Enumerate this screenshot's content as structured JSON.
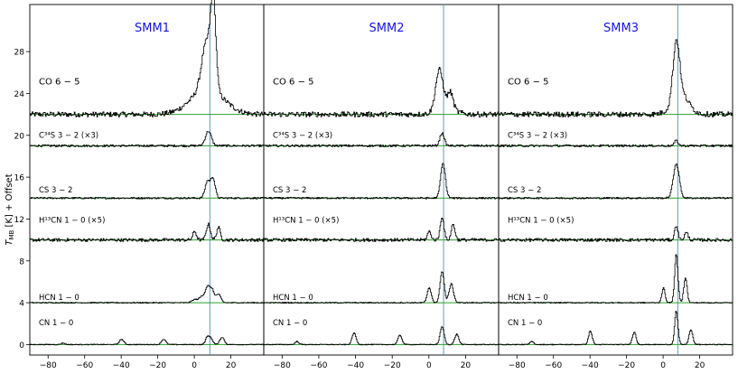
{
  "chart_data": {
    "type": "line",
    "ylabel": "T_MB [K] + Offset",
    "ylabel_main": "T",
    "ylabel_sub": "MB",
    "ylabel_rest": " [K] + Offset",
    "ylim": [
      -1.0,
      32.5
    ],
    "yticks": [
      0,
      4,
      8,
      12,
      16,
      20,
      24,
      28
    ],
    "xlim": [
      -90,
      38
    ],
    "xticks": [
      -80,
      -60,
      -40,
      -20,
      0,
      20
    ],
    "colors": {
      "spectrum": "#000000",
      "fit": "#2ca02c",
      "vline": "#4a90c2",
      "title": "#1515e6"
    },
    "panels": [
      {
        "title": "SMM1",
        "vlsr": 8.5,
        "rows": [
          {
            "name": "CO 6 − 5",
            "offset": 22,
            "label_y": 25.2,
            "noise": 0.25,
            "components": [
              {
                "v": 7,
                "a": 2.4,
                "w": 9
              },
              {
                "v": 6.5,
                "a": 4.5,
                "w": 2.6
              },
              {
                "v": 10.2,
                "a": 7.8,
                "w": 1.4
              }
            ]
          },
          {
            "name": "C³⁴S 3 − 2 (×3)",
            "offset": 19,
            "label_y": 20.1,
            "noise": 0.1,
            "components": [
              {
                "v": 7.5,
                "a": 1.4,
                "w": 1.6
              }
            ]
          },
          {
            "name": "CS 3 − 2",
            "offset": 14,
            "label_y": 14.9,
            "noise": 0.08,
            "components": [
              {
                "v": 7,
                "a": 1.6,
                "w": 1.3
              },
              {
                "v": 10,
                "a": 1.9,
                "w": 1.2
              }
            ]
          },
          {
            "name": "H¹³CN 1 − 0 (×5)",
            "offset": 10,
            "label_y": 12.0,
            "noise": 0.15,
            "components": [
              {
                "v": 0,
                "a": 0.8,
                "w": 1
              },
              {
                "v": 7.5,
                "a": 1.5,
                "w": 1.1
              },
              {
                "v": 13,
                "a": 1.2,
                "w": 1
              }
            ]
          },
          {
            "name": "HCN 1 − 0",
            "offset": 4,
            "label_y": 4.6,
            "noise": 0.05,
            "components": [
              {
                "v": 0,
                "a": 0.3,
                "w": 1.5
              },
              {
                "v": 4,
                "a": 0.6,
                "w": 1.5
              },
              {
                "v": 7,
                "a": 1.4,
                "w": 1.2
              },
              {
                "v": 9.5,
                "a": 1.2,
                "w": 1.2
              },
              {
                "v": 13,
                "a": 0.8,
                "w": 1.3
              }
            ]
          },
          {
            "name": "CN 1 − 0",
            "offset": 0,
            "label_y": 2.2,
            "noise": 0.04,
            "components": [
              {
                "v": -72,
                "a": 0.15,
                "w": 1
              },
              {
                "v": -40,
                "a": 0.5,
                "w": 1.2
              },
              {
                "v": -17,
                "a": 0.5,
                "w": 1.2
              },
              {
                "v": 7,
                "a": 0.7,
                "w": 1.1
              },
              {
                "v": 9,
                "a": 0.5,
                "w": 1.1
              },
              {
                "v": 15,
                "a": 0.7,
                "w": 1.2
              }
            ]
          }
        ]
      },
      {
        "title": "SMM2",
        "vlsr": 8,
        "rows": [
          {
            "name": "CO 6 − 5",
            "offset": 22,
            "label_y": 25.2,
            "noise": 0.25,
            "components": [
              {
                "v": 5.5,
                "a": 3.8,
                "w": 2
              },
              {
                "v": 11.5,
                "a": 1.6,
                "w": 1.5
              },
              {
                "v": 9,
                "a": 0.6,
                "w": 5
              }
            ]
          },
          {
            "name": "C³⁴S 3 − 2 (×3)",
            "offset": 19,
            "label_y": 20.1,
            "noise": 0.1,
            "components": [
              {
                "v": 7,
                "a": 1.2,
                "w": 1.2
              }
            ]
          },
          {
            "name": "CS 3 − 2",
            "offset": 14,
            "label_y": 14.9,
            "noise": 0.08,
            "components": [
              {
                "v": 7.5,
                "a": 3.3,
                "w": 1.3
              }
            ]
          },
          {
            "name": "H¹³CN 1 − 0 (×5)",
            "offset": 10,
            "label_y": 12.0,
            "noise": 0.15,
            "components": [
              {
                "v": 0,
                "a": 0.8,
                "w": 1
              },
              {
                "v": 7,
                "a": 2.2,
                "w": 1
              },
              {
                "v": 13,
                "a": 1.5,
                "w": 1
              }
            ]
          },
          {
            "name": "HCN 1 − 0",
            "offset": 4,
            "label_y": 4.6,
            "noise": 0.05,
            "components": [
              {
                "v": 0,
                "a": 1.4,
                "w": 1.1
              },
              {
                "v": 7,
                "a": 3.0,
                "w": 1.1
              },
              {
                "v": 12,
                "a": 1.8,
                "w": 1.2
              }
            ]
          },
          {
            "name": "CN 1 − 0",
            "offset": 0,
            "label_y": 2.2,
            "noise": 0.04,
            "components": [
              {
                "v": -72,
                "a": 0.3,
                "w": 1
              },
              {
                "v": -41,
                "a": 1.1,
                "w": 1.1
              },
              {
                "v": -16,
                "a": 0.9,
                "w": 1.1
              },
              {
                "v": 7,
                "a": 1.7,
                "w": 1.1
              },
              {
                "v": 15,
                "a": 1.0,
                "w": 1.1
              }
            ]
          }
        ]
      },
      {
        "title": "SMM3",
        "vlsr": 8,
        "rows": [
          {
            "name": "CO 6 − 5",
            "offset": 22,
            "label_y": 25.2,
            "noise": 0.25,
            "components": [
              {
                "v": 7,
                "a": 5.8,
                "w": 1.8
              },
              {
                "v": 9,
                "a": 1.2,
                "w": 5
              },
              {
                "v": 11,
                "a": 0.6,
                "w": 3
              }
            ]
          },
          {
            "name": "C³⁴S 3 − 2 (×3)",
            "offset": 19,
            "label_y": 20.1,
            "noise": 0.1,
            "components": [
              {
                "v": 7,
                "a": 0.5,
                "w": 1
              }
            ]
          },
          {
            "name": "CS 3 − 2",
            "offset": 14,
            "label_y": 14.9,
            "noise": 0.08,
            "components": [
              {
                "v": 7,
                "a": 3.3,
                "w": 1.6
              }
            ]
          },
          {
            "name": "H¹³CN 1 − 0 (×5)",
            "offset": 10,
            "label_y": 12.0,
            "noise": 0.15,
            "components": [
              {
                "v": 7,
                "a": 1.4,
                "w": 0.9
              },
              {
                "v": 12.5,
                "a": 0.7,
                "w": 1
              }
            ]
          },
          {
            "name": "HCN 1 − 0",
            "offset": 4,
            "label_y": 4.6,
            "noise": 0.05,
            "components": [
              {
                "v": 0,
                "a": 1.4,
                "w": 0.9
              },
              {
                "v": 7,
                "a": 4.6,
                "w": 0.9
              },
              {
                "v": 12,
                "a": 2.4,
                "w": 0.9
              }
            ]
          },
          {
            "name": "CN 1 − 0",
            "offset": 0,
            "label_y": 2.2,
            "noise": 0.04,
            "components": [
              {
                "v": -72,
                "a": 0.3,
                "w": 1
              },
              {
                "v": -40,
                "a": 1.3,
                "w": 1
              },
              {
                "v": -16,
                "a": 1.2,
                "w": 1
              },
              {
                "v": 7,
                "a": 3.2,
                "w": 0.9
              },
              {
                "v": 15,
                "a": 1.4,
                "w": 1
              }
            ]
          }
        ]
      }
    ]
  }
}
